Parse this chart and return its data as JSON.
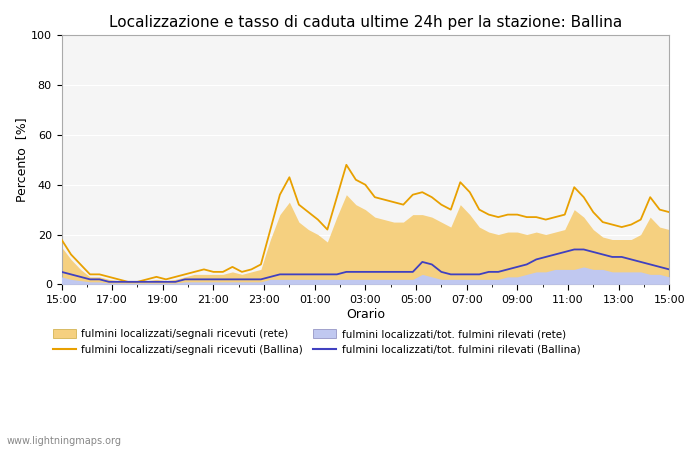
{
  "title": "Localizzazione e tasso di caduta ultime 24h per la stazione: Ballina",
  "xlabel": "Orario",
  "ylabel": "Percento  [%]",
  "xlim_labels": [
    "15:00",
    "17:00",
    "19:00",
    "21:00",
    "23:00",
    "01:00",
    "03:00",
    "05:00",
    "07:00",
    "09:00",
    "11:00",
    "13:00",
    "15:00"
  ],
  "ylim": [
    0,
    100
  ],
  "yticks": [
    0,
    20,
    40,
    60,
    80,
    100
  ],
  "background_color": "#ffffff",
  "plot_bg_color": "#f5f5f5",
  "watermark": "www.lightningmaps.org",
  "legend": [
    {
      "label": "fulmini localizzati/segnali ricevuti (rete)",
      "color": "#f5d080",
      "linestyle": "solid",
      "linewidth": 0,
      "fill": true
    },
    {
      "label": "fulmini localizzati/segnali ricevuti (Ballina)",
      "color": "#e8a000",
      "linestyle": "solid",
      "linewidth": 1.5,
      "fill": false
    },
    {
      "label": "fulmini localizzati/tot. fulmini rilevati (rete)",
      "color": "#c0c8f0",
      "linestyle": "solid",
      "linewidth": 0,
      "fill": true
    },
    {
      "label": "fulmini localizzati/tot. fulmini rilevati (Ballina)",
      "color": "#4040c0",
      "linestyle": "solid",
      "linewidth": 1.5,
      "fill": false
    }
  ],
  "orange_line": [
    18,
    12,
    8,
    4,
    4,
    3,
    2,
    1,
    1,
    2,
    3,
    2,
    3,
    4,
    5,
    6,
    5,
    5,
    7,
    5,
    6,
    8,
    22,
    36,
    43,
    32,
    29,
    26,
    22,
    35,
    48,
    42,
    40,
    35,
    34,
    33,
    32,
    36,
    37,
    35,
    32,
    30,
    41,
    37,
    30,
    28,
    27,
    28,
    28,
    27,
    27,
    26,
    27,
    28,
    39,
    35,
    29,
    25,
    24,
    23,
    24,
    26,
    35,
    30,
    29
  ],
  "orange_fill": [
    15,
    10,
    6,
    3,
    3,
    2,
    1.5,
    1,
    1,
    1.5,
    2,
    1.5,
    2,
    3,
    4,
    4,
    4,
    4,
    5,
    4,
    5,
    6,
    18,
    28,
    33,
    25,
    22,
    20,
    17,
    27,
    36,
    32,
    30,
    27,
    26,
    25,
    25,
    28,
    28,
    27,
    25,
    23,
    32,
    28,
    23,
    21,
    20,
    21,
    21,
    20,
    21,
    20,
    21,
    22,
    30,
    27,
    22,
    19,
    18,
    18,
    18,
    20,
    27,
    23,
    22
  ],
  "blue_line": [
    5,
    4,
    3,
    2,
    2,
    1,
    1,
    1,
    1,
    1,
    1,
    1,
    1,
    2,
    2,
    2,
    2,
    2,
    2,
    2,
    2,
    2,
    3,
    4,
    4,
    4,
    4,
    4,
    4,
    4,
    5,
    5,
    5,
    5,
    5,
    5,
    5,
    5,
    9,
    8,
    5,
    4,
    4,
    4,
    4,
    5,
    5,
    6,
    7,
    8,
    10,
    11,
    12,
    13,
    14,
    14,
    13,
    12,
    11,
    11,
    10,
    9,
    8,
    7,
    6
  ],
  "blue_fill": [
    3,
    2,
    1.5,
    1,
    1,
    0.5,
    0.5,
    0.5,
    0.5,
    0.5,
    0.5,
    0.5,
    0.5,
    1,
    1,
    1,
    1,
    1,
    1,
    1,
    1,
    1,
    2,
    2,
    2,
    2,
    2,
    2,
    2,
    2,
    2,
    2,
    2,
    2,
    2,
    2,
    2,
    2,
    4,
    3,
    2,
    2,
    2,
    2,
    2,
    2,
    2,
    3,
    3,
    4,
    5,
    5,
    6,
    6,
    6,
    7,
    6,
    6,
    5,
    5,
    5,
    5,
    4,
    4,
    3
  ]
}
